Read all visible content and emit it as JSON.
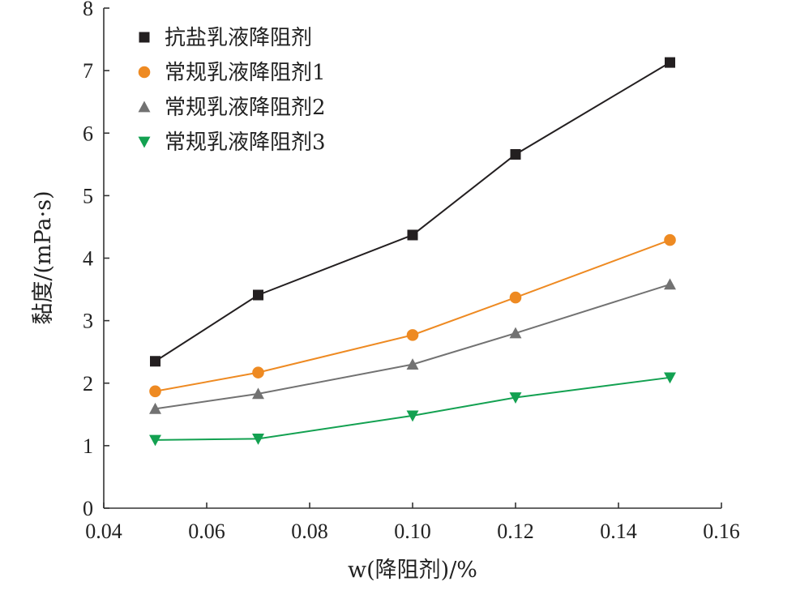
{
  "chart_data": {
    "type": "line",
    "xlabel": "w(降阻剂)/%",
    "ylabel": "黏度/(mPa·s)",
    "xlim": [
      0.04,
      0.16
    ],
    "ylim": [
      0,
      8
    ],
    "xticks": [
      "0.04",
      "0.06",
      "0.08",
      "0.10",
      "0.12",
      "0.14",
      "0.16"
    ],
    "yticks": [
      "0",
      "1",
      "2",
      "3",
      "4",
      "5",
      "6",
      "7",
      "8"
    ],
    "grid": false,
    "legend_position": "top-left",
    "x": [
      0.05,
      0.07,
      0.1,
      0.12,
      0.15
    ],
    "series": [
      {
        "name": "抗盐乳液降阻剂",
        "marker": "square",
        "color": "#231f20",
        "values": [
          2.35,
          3.41,
          4.37,
          5.66,
          7.13
        ]
      },
      {
        "name": "常规乳液降阻剂1",
        "marker": "circle",
        "color": "#ee8a22",
        "values": [
          1.87,
          2.17,
          2.77,
          3.37,
          4.29
        ]
      },
      {
        "name": "常规乳液降阻剂2",
        "marker": "triangle-up",
        "color": "#727272",
        "values": [
          1.59,
          1.83,
          2.3,
          2.8,
          3.58
        ]
      },
      {
        "name": "常规乳液降阻剂3",
        "marker": "triangle-down",
        "color": "#13a151",
        "values": [
          1.09,
          1.11,
          1.48,
          1.77,
          2.09
        ]
      }
    ]
  }
}
